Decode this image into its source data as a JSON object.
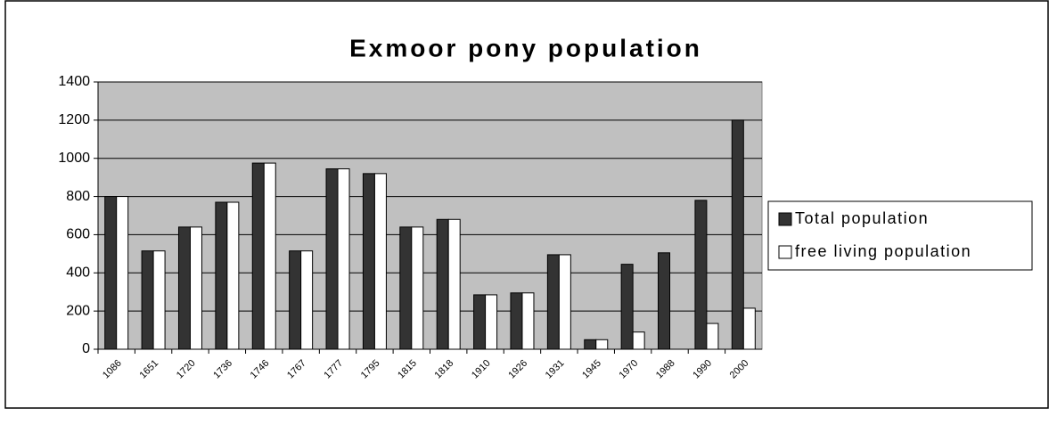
{
  "chart_data": {
    "type": "bar",
    "title": "Exmoor pony population",
    "categories": [
      "1086",
      "1651",
      "1720",
      "1736",
      "1746",
      "1767",
      "1777",
      "1795",
      "1815",
      "1818",
      "1910",
      "1926",
      "1931",
      "1945",
      "1970",
      "1988",
      "1990",
      "2000"
    ],
    "series": [
      {
        "name": "Total population",
        "color": "#333333",
        "values": [
          800,
          515,
          640,
          770,
          975,
          515,
          945,
          920,
          640,
          680,
          285,
          295,
          495,
          50,
          445,
          505,
          780,
          1200
        ]
      },
      {
        "name": "free living population",
        "color": "#ffffff",
        "values": [
          800,
          515,
          640,
          770,
          975,
          515,
          945,
          920,
          640,
          680,
          285,
          295,
          495,
          50,
          90,
          null,
          135,
          215
        ]
      }
    ],
    "ylim": [
      0,
      1400
    ],
    "yticks": [
      0,
      200,
      400,
      600,
      800,
      1000,
      1200,
      1400
    ],
    "grid": true,
    "plot_background": "#c0c0c0",
    "legend": "right"
  }
}
